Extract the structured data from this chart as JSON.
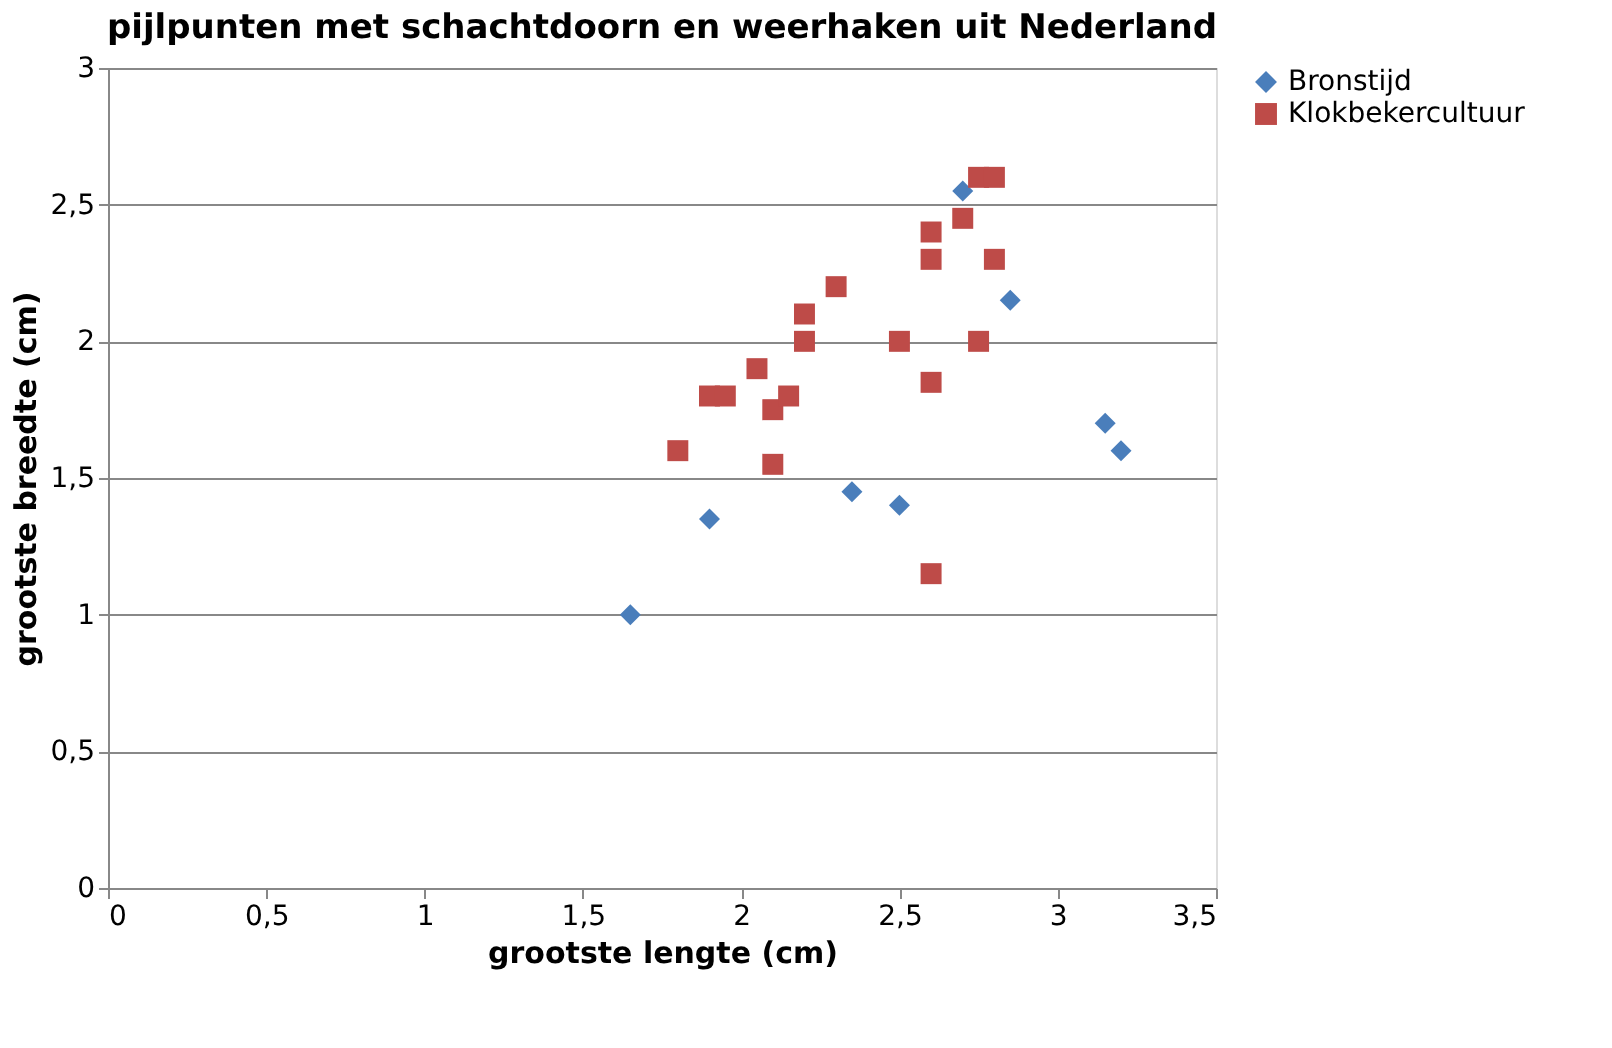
{
  "chart_data": {
    "type": "scatter",
    "title": "pijlpunten met schachtdoorn en weerhaken uit Nederland",
    "xlabel": "grootste lengte (cm)",
    "ylabel": "grootste breedte (cm)",
    "xlim": [
      0,
      3.5
    ],
    "xticks": [
      0,
      {
        "value": 0.5,
        "label": "0,5"
      },
      1,
      {
        "value": 1.5,
        "label": "1,5"
      },
      2,
      {
        "value": 2.5,
        "label": "2,5"
      },
      3,
      {
        "value": 3.5,
        "label": "3,5"
      }
    ],
    "ylim": [
      0,
      3
    ],
    "yticks": [
      0,
      {
        "value": 0.5,
        "label": "0,5"
      },
      1,
      {
        "value": 1.5,
        "label": "1,5"
      },
      2,
      {
        "value": 2.5,
        "label": "2,5"
      },
      3
    ],
    "grid": "y",
    "legend": "right",
    "series": [
      {
        "name": "Bronstijd",
        "color": "#4a7ebb",
        "marker": "diamond",
        "x": [
          1.65,
          1.9,
          2.35,
          2.5,
          2.7,
          2.85,
          3.15,
          3.2
        ],
        "values": [
          1.0,
          1.35,
          1.45,
          1.4,
          2.55,
          2.15,
          1.7,
          1.6
        ]
      },
      {
        "name": "Klokbekercultuur",
        "color": "#be4b48",
        "marker": "square",
        "x": [
          1.8,
          1.9,
          1.95,
          2.05,
          2.1,
          2.15,
          2.1,
          2.2,
          2.2,
          2.3,
          2.5,
          2.6,
          2.6,
          2.6,
          2.6,
          2.7,
          2.75,
          2.8,
          2.8,
          2.75
        ],
        "values": [
          1.6,
          1.8,
          1.8,
          1.9,
          1.75,
          1.8,
          1.55,
          2.1,
          2.0,
          2.2,
          2.0,
          2.4,
          2.3,
          1.85,
          1.15,
          2.45,
          2.6,
          2.6,
          2.3,
          2.0
        ]
      }
    ]
  }
}
